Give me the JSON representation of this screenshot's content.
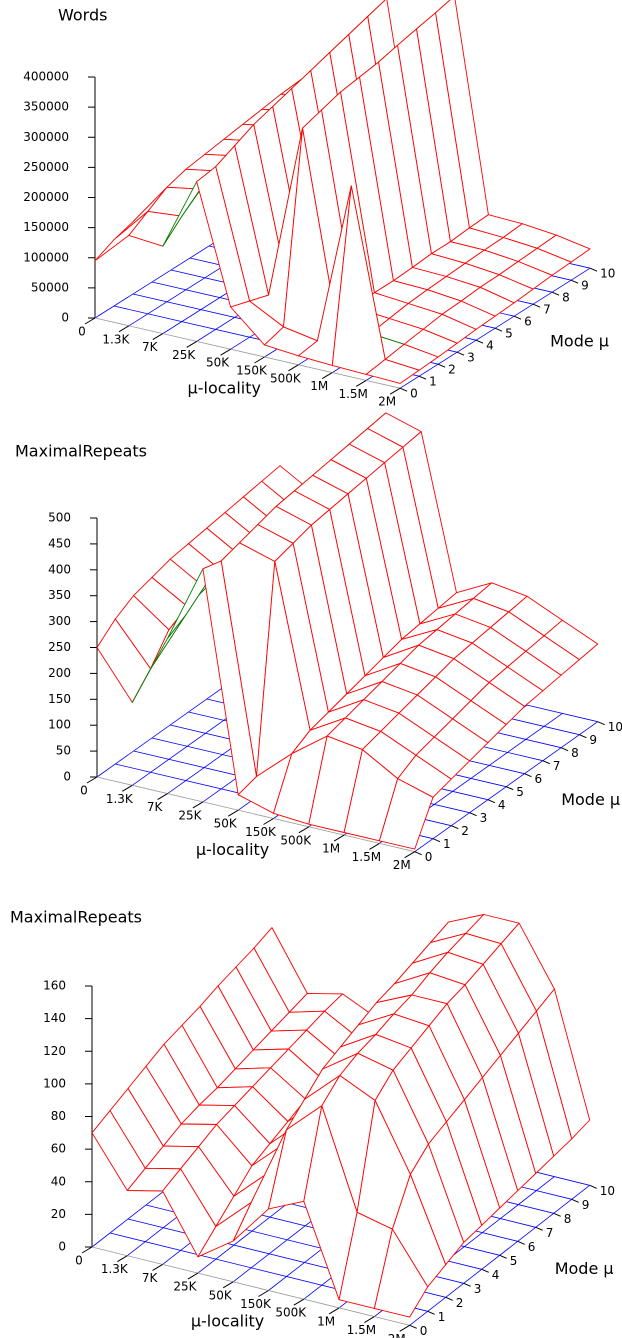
{
  "chart_data": [
    {
      "type": "surface",
      "title": "Words",
      "xlabel": "μ-locality",
      "ylabel": "Mode μ",
      "x": [
        "0",
        "1.3K",
        "7K",
        "25K",
        "50K",
        "150K",
        "500K",
        "1M",
        "1.5M",
        "2M"
      ],
      "y": [
        0,
        1,
        2,
        3,
        4,
        5,
        6,
        7,
        8,
        9,
        10
      ],
      "zlim": [
        0,
        400000
      ],
      "zticks": [
        0,
        50000,
        100000,
        150000,
        200000,
        250000,
        300000,
        350000,
        400000
      ],
      "colors": {
        "top": "#ff0000",
        "bottom": "#008000",
        "base": "#0000ff"
      },
      "values": [
        [
          95000,
          150000,
          145000,
          265000,
          70000,
          20000,
          15000,
          12000,
          10000,
          8000
        ],
        [
          110000,
          170000,
          175000,
          270000,
          60000,
          30000,
          20000,
          290000,
          15000,
          10000
        ],
        [
          120000,
          190000,
          200000,
          285000,
          50000,
          340000,
          30000,
          25000,
          20000,
          12000
        ],
        [
          125000,
          200000,
          210000,
          300000,
          45000,
          350000,
          35000,
          30000,
          25000,
          15000
        ],
        [
          130000,
          205000,
          215000,
          310000,
          40000,
          360000,
          40000,
          35000,
          30000,
          18000
        ],
        [
          135000,
          210000,
          220000,
          320000,
          40000,
          365000,
          40000,
          38000,
          32000,
          20000
        ],
        [
          140000,
          215000,
          225000,
          330000,
          38000,
          370000,
          42000,
          40000,
          35000,
          22000
        ],
        [
          142000,
          220000,
          230000,
          340000,
          38000,
          378000,
          45000,
          42000,
          36000,
          25000
        ],
        [
          145000,
          225000,
          235000,
          350000,
          36000,
          385000,
          45000,
          44000,
          38000,
          28000
        ],
        [
          148000,
          228000,
          240000,
          360000,
          35000,
          392000,
          48000,
          45000,
          40000,
          30000
        ],
        [
          150000,
          230000,
          245000,
          370000,
          35000,
          400000,
          50000,
          48000,
          42000,
          32000
        ]
      ]
    },
    {
      "type": "surface",
      "title": "MaximalRepeats",
      "xlabel": "μ-locality",
      "ylabel": "Mode μ",
      "x": [
        "0",
        "1.3K",
        "7K",
        "25K",
        "50K",
        "150K",
        "500K",
        "1M",
        "1.5M",
        "2M"
      ],
      "y": [
        0,
        1,
        2,
        3,
        4,
        5,
        6,
        7,
        8,
        9,
        10
      ],
      "zlim": [
        0,
        500
      ],
      "zticks": [
        0,
        50,
        100,
        150,
        200,
        250,
        300,
        350,
        400,
        450,
        500
      ],
      "colors": {
        "top": "#ff0000",
        "bottom": "#008000",
        "base": "#0000ff"
      },
      "values": [
        [
          250,
          160,
          300,
          450,
          30,
          10,
          5,
          5,
          5,
          5
        ],
        [
          280,
          200,
          320,
          440,
          40,
          100,
          150,
          140,
          100,
          80
        ],
        [
          300,
          250,
          350,
          450,
          430,
          120,
          160,
          150,
          120,
          90
        ],
        [
          310,
          270,
          370,
          460,
          440,
          130,
          170,
          160,
          130,
          100
        ],
        [
          320,
          280,
          380,
          470,
          450,
          140,
          180,
          170,
          140,
          110
        ],
        [
          325,
          285,
          390,
          475,
          455,
          150,
          190,
          180,
          150,
          120
        ],
        [
          330,
          290,
          395,
          480,
          460,
          160,
          200,
          190,
          160,
          130
        ],
        [
          335,
          295,
          400,
          485,
          465,
          170,
          205,
          195,
          165,
          135
        ],
        [
          340,
          300,
          405,
          490,
          470,
          175,
          210,
          200,
          170,
          140
        ],
        [
          345,
          305,
          410,
          495,
          475,
          180,
          215,
          205,
          175,
          145
        ],
        [
          350,
          310,
          415,
          500,
          480,
          185,
          220,
          210,
          180,
          150
        ]
      ]
    },
    {
      "type": "surface",
      "title": "MaximalRepeats",
      "xlabel": "μ-locality",
      "ylabel": "Mode μ",
      "x": [
        "0",
        "1.3K",
        "7K",
        "25K",
        "50K",
        "150K",
        "500K",
        "1M",
        "1.5M",
        "2M"
      ],
      "y": [
        0,
        1,
        2,
        3,
        4,
        5,
        6,
        7,
        8,
        9,
        10
      ],
      "zlim": [
        0,
        160
      ],
      "zticks": [
        0,
        20,
        40,
        60,
        80,
        100,
        120,
        140,
        160
      ],
      "colors": {
        "top": "#ff0000",
        "bottom": "#008000",
        "base": "#0000ff"
      },
      "values": [
        [
          70,
          40,
          45,
          10,
          25,
          50,
          60,
          5,
          5,
          5
        ],
        [
          75,
          45,
          50,
          20,
          40,
          90,
          110,
          50,
          45,
          15
        ],
        [
          80,
          50,
          55,
          30,
          50,
          100,
          120,
          110,
          70,
          20
        ],
        [
          85,
          55,
          60,
          40,
          60,
          110,
          125,
          120,
          80,
          25
        ],
        [
          90,
          58,
          63,
          45,
          65,
          115,
          128,
          125,
          85,
          27
        ],
        [
          93,
          60,
          66,
          50,
          70,
          120,
          132,
          130,
          90,
          29
        ],
        [
          96,
          63,
          69,
          55,
          75,
          125,
          135,
          135,
          95,
          31
        ],
        [
          100,
          66,
          72,
          58,
          80,
          128,
          140,
          138,
          100,
          33
        ],
        [
          103,
          69,
          75,
          62,
          84,
          132,
          144,
          142,
          105,
          35
        ],
        [
          106,
          72,
          78,
          66,
          87,
          136,
          147,
          146,
          110,
          37
        ],
        [
          110,
          75,
          80,
          70,
          90,
          140,
          150,
          150,
          115,
          40
        ]
      ]
    }
  ]
}
